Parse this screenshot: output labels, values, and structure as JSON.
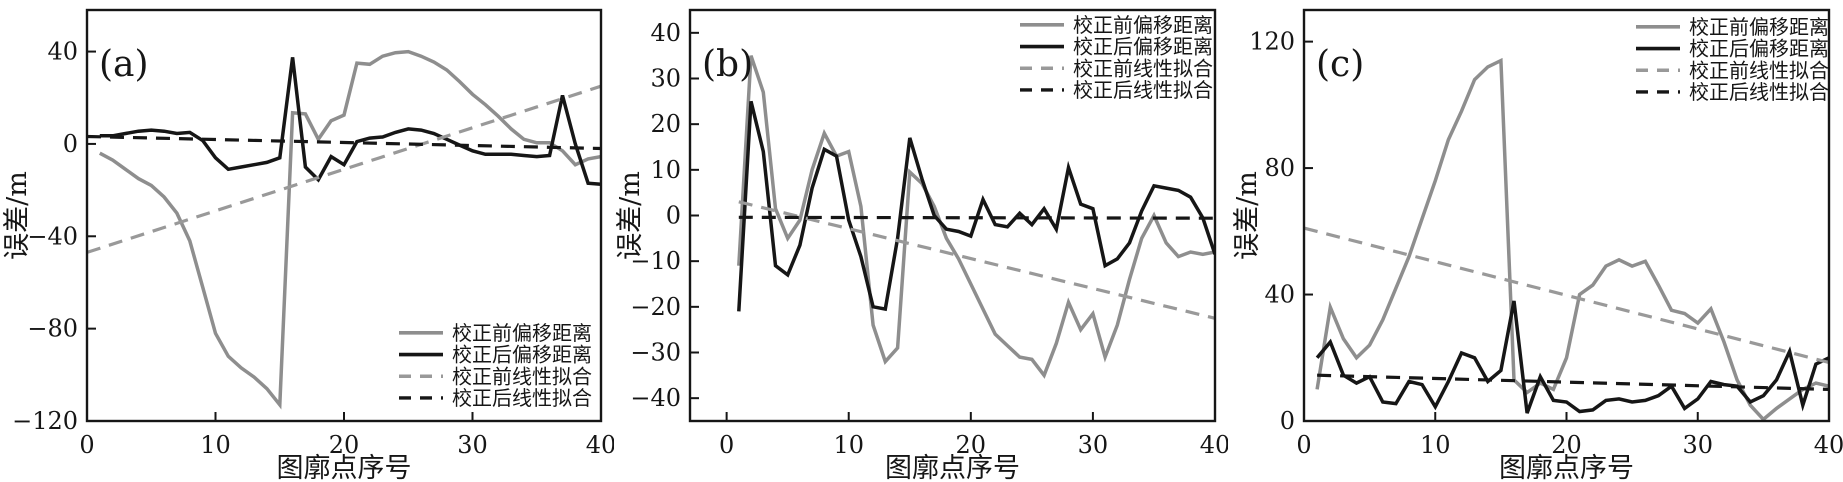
{
  "page": {
    "background": "#ffffff",
    "text_color": "#161616"
  },
  "chart_data": [
    {
      "type": "line",
      "panel_label": "(a)",
      "xlabel": "图廓点序号",
      "ylabel": "误差/m",
      "xlim": [
        0,
        40
      ],
      "ylim": [
        -120,
        58
      ],
      "xticks": [
        0,
        10,
        20,
        30,
        40
      ],
      "yticks": [
        -120,
        -80,
        -40,
        0,
        40
      ],
      "grid": false,
      "legend_position": "bottom-right",
      "x": [
        1,
        2,
        3,
        4,
        5,
        6,
        7,
        8,
        9,
        10,
        11,
        12,
        13,
        14,
        15,
        16,
        17,
        18,
        19,
        20,
        21,
        22,
        23,
        24,
        25,
        26,
        27,
        28,
        29,
        30,
        31,
        32,
        33,
        34,
        35,
        36,
        37,
        38,
        39,
        40
      ],
      "series": [
        {
          "name": "校正前偏移距离",
          "style": "solid",
          "color": "#8e8e8e",
          "values": [
            -4,
            -7,
            -11,
            -15,
            -18,
            -23,
            -30,
            -42,
            -62,
            -82,
            -92,
            -97,
            -101,
            -106,
            -113,
            13.5,
            13,
            2,
            10,
            12.5,
            35,
            34.5,
            38,
            39.5,
            40,
            38,
            35.5,
            32,
            27,
            21.5,
            17,
            12,
            6.5,
            2,
            0.5,
            0.5,
            -3,
            -9,
            -6.5,
            -5.5
          ]
        },
        {
          "name": "校正后偏移距离",
          "style": "solid",
          "color": "#161616",
          "values": [
            3.5,
            3.5,
            4.5,
            5.5,
            6,
            5.5,
            4.5,
            5,
            1.5,
            -6,
            -11,
            -10,
            -9,
            -8,
            -6,
            37.5,
            -10,
            -15.5,
            -5.5,
            -9,
            1,
            2.5,
            3,
            5,
            6.5,
            6,
            4.5,
            2,
            -0.5,
            -3,
            -4.5,
            -4.5,
            -4.5,
            -5,
            -5.5,
            -5,
            21,
            0,
            -17,
            -17.5
          ]
        },
        {
          "name": "校正前线性拟合",
          "style": "dashed",
          "color": "#999999",
          "fit_x": [
            0,
            40
          ],
          "values": [
            -47,
            25
          ]
        },
        {
          "name": "校正后线性拟合",
          "style": "dashed",
          "color": "#161616",
          "fit_x": [
            0,
            40
          ],
          "values": [
            3.2,
            -2
          ]
        }
      ]
    },
    {
      "type": "line",
      "panel_label": "(b)",
      "xlabel": "图廓点序号",
      "ylabel": "误差/m",
      "xlim": [
        -3,
        40
      ],
      "ylim": [
        -45,
        45
      ],
      "xticks": [
        0,
        10,
        20,
        30,
        40
      ],
      "yticks": [
        -40,
        -30,
        -20,
        -10,
        0,
        10,
        20,
        30,
        40
      ],
      "grid": false,
      "legend_position": "top-right",
      "x": [
        1,
        2,
        3,
        4,
        5,
        6,
        7,
        8,
        9,
        10,
        11,
        12,
        13,
        14,
        15,
        16,
        17,
        18,
        19,
        20,
        21,
        22,
        23,
        24,
        25,
        26,
        27,
        28,
        29,
        30,
        31,
        32,
        33,
        34,
        35,
        36,
        37,
        38,
        39,
        40
      ],
      "series": [
        {
          "name": "校正前偏移距离",
          "style": "solid",
          "color": "#8e8e8e",
          "values": [
            -11,
            35,
            27,
            1.5,
            -5,
            -1,
            10,
            18,
            13,
            14,
            2,
            -24,
            -32,
            -29,
            9.5,
            7,
            2,
            -5,
            -9.5,
            -15,
            -20.5,
            -26,
            -28.5,
            -31,
            -31.5,
            -35,
            -28,
            -19,
            -25,
            -21.5,
            -31,
            -24,
            -14,
            -5,
            0,
            -6,
            -9,
            -8,
            -8.5,
            -8
          ]
        },
        {
          "name": "校正后偏移距离",
          "style": "solid",
          "color": "#161616",
          "values": [
            -21,
            25,
            14,
            -11,
            -13,
            -6.5,
            6,
            14.5,
            13,
            -1,
            -9,
            -20,
            -20.5,
            -5,
            17,
            8,
            0,
            -3,
            -3.5,
            -4.5,
            3.5,
            -2,
            -2.5,
            0.5,
            -2,
            1.5,
            -3,
            10.5,
            2.5,
            1.5,
            -11,
            -9.5,
            -6,
            1,
            6.5,
            6,
            5.5,
            4,
            -0.5,
            -8.5
          ]
        },
        {
          "name": "校正前线性拟合",
          "style": "dashed",
          "color": "#999999",
          "fit_x": [
            1,
            40
          ],
          "values": [
            3,
            -22.5
          ]
        },
        {
          "name": "校正后线性拟合",
          "style": "dashed",
          "color": "#161616",
          "fit_x": [
            1,
            40
          ],
          "values": [
            -0.4,
            -0.6
          ]
        }
      ]
    },
    {
      "type": "line",
      "panel_label": "(c)",
      "xlabel": "图廓点序号",
      "ylabel": "误差/m",
      "xlim": [
        0,
        40
      ],
      "ylim": [
        0,
        130
      ],
      "xticks": [
        0,
        10,
        20,
        30,
        40
      ],
      "yticks": [
        0,
        40,
        80,
        120
      ],
      "grid": false,
      "legend_position": "top-right",
      "x": [
        1,
        2,
        3,
        4,
        5,
        6,
        7,
        8,
        9,
        10,
        11,
        12,
        13,
        14,
        15,
        16,
        17,
        18,
        19,
        20,
        21,
        22,
        23,
        24,
        25,
        26,
        27,
        28,
        29,
        30,
        31,
        32,
        33,
        34,
        35,
        36,
        37,
        38,
        39,
        40
      ],
      "series": [
        {
          "name": "校正前偏移距离",
          "style": "solid",
          "color": "#8e8e8e",
          "values": [
            10,
            36,
            26,
            20,
            24,
            32,
            42,
            52,
            64,
            76,
            89,
            98,
            108,
            112,
            114,
            13,
            9,
            12,
            10,
            20,
            40,
            43,
            49,
            51,
            49,
            50.5,
            43,
            35,
            34,
            31,
            35.5,
            25,
            13,
            5,
            0.5,
            4,
            7,
            10,
            12,
            11
          ]
        },
        {
          "name": "校正后偏移距离",
          "style": "solid",
          "color": "#161616",
          "values": [
            20,
            25,
            14.5,
            12,
            14,
            6,
            5.5,
            12.5,
            11.5,
            4.5,
            12.5,
            21.5,
            20,
            12.5,
            16,
            38,
            2.5,
            14,
            6.5,
            6,
            3,
            3.5,
            6.5,
            7,
            6,
            6.5,
            8,
            11,
            4,
            7,
            12.5,
            11.5,
            11,
            6,
            8,
            13,
            22,
            5,
            18,
            20
          ]
        },
        {
          "name": "校正前线性拟合",
          "style": "dashed",
          "color": "#999999",
          "fit_x": [
            0,
            40
          ],
          "values": [
            61,
            18.5
          ]
        },
        {
          "name": "校正后线性拟合",
          "style": "dashed",
          "color": "#161616",
          "fit_x": [
            1,
            40
          ],
          "values": [
            14.5,
            10
          ]
        }
      ]
    }
  ]
}
